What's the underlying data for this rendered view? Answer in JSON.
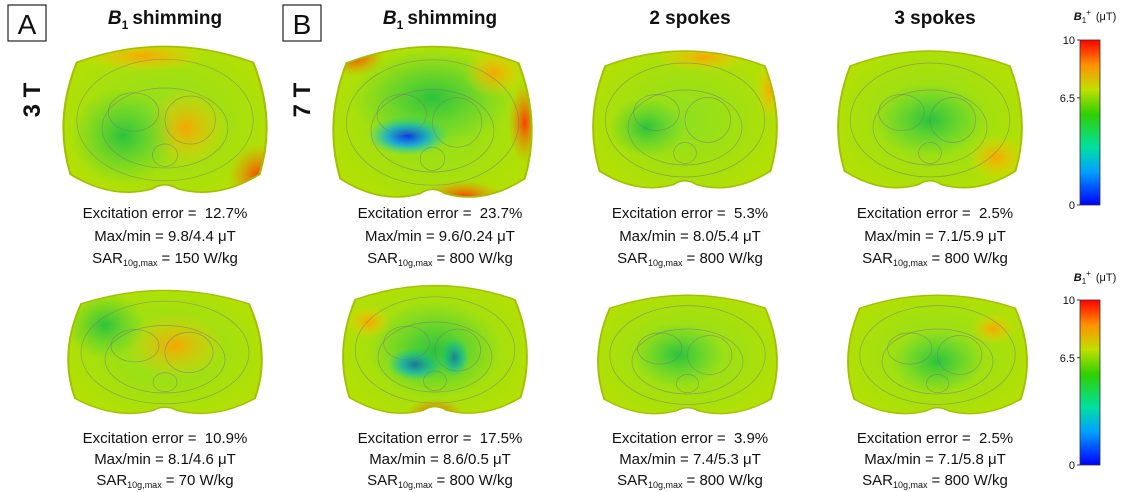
{
  "panels": [
    {
      "label": "A"
    },
    {
      "label": "B"
    }
  ],
  "row_labels": [
    "3 T",
    "7 T"
  ],
  "column_titles": [
    {
      "symbol": "B",
      "subscript": "1",
      "text": "shimming"
    },
    {
      "symbol": "B",
      "subscript": "1",
      "text": "shimming"
    },
    {
      "text": "2 spokes"
    },
    {
      "text": "3 spokes"
    }
  ],
  "maps": [
    {
      "excitation_error": "Excitation error =  12.7%",
      "max_min": "Max/min = 9.8/4.4 μT",
      "sar": "SAR",
      "sar_subscript": "10g,max",
      "sar_value": "= 150 W/kg"
    },
    {
      "excitation_error": "Excitation error =  23.7%",
      "max_min": "Max/min = 9.6/0.24 μT",
      "sar": "SAR",
      "sar_subscript": "10g,max",
      "sar_value": "= 800 W/kg"
    },
    {
      "excitation_error": "Excitation error =  5.3%",
      "max_min": "Max/min = 8.0/5.4 μT",
      "sar": "SAR",
      "sar_subscript": "10g,max",
      "sar_value": "= 800 W/kg"
    },
    {
      "excitation_error": "Excitation error =  2.5%",
      "max_min": "Max/min = 7.1/5.9 μT",
      "sar": "SAR",
      "sar_subscript": "10g,max",
      "sar_value": "= 800 W/kg"
    },
    {
      "excitation_error": "Excitation error =  10.9%",
      "max_min": "Max/min = 8.1/4.6 μT",
      "sar": "SAR",
      "sar_subscript": "10g,max",
      "sar_value": "= 70 W/kg"
    },
    {
      "excitation_error": "Excitation error =  17.5%",
      "max_min": "Max/min = 8.6/0.5 μT",
      "sar": "SAR",
      "sar_subscript": "10g,max",
      "sar_value": "= 800 W/kg"
    },
    {
      "excitation_error": "Excitation error =  3.9%",
      "max_min": "Max/min = 7.4/5.3 μT",
      "sar": "SAR",
      "sar_subscript": "10g,max",
      "sar_value": "= 800 W/kg"
    },
    {
      "excitation_error": "Excitation error =  2.5%",
      "max_min": "Max/min = 7.1/5.8 μT",
      "sar": "SAR",
      "sar_subscript": "10g,max",
      "sar_value": "= 800 W/kg"
    }
  ],
  "colorbars": [
    {
      "symbol": "B",
      "subscript": "1",
      "superscript": "+",
      "unit": "(μT)",
      "range": [
        0,
        10
      ],
      "ticks": [
        0,
        6.5,
        10
      ]
    },
    {
      "symbol": "B",
      "subscript": "1",
      "superscript": "+",
      "unit": "(μT)",
      "range": [
        0,
        10
      ],
      "ticks": [
        0,
        6.5,
        10
      ]
    }
  ]
}
